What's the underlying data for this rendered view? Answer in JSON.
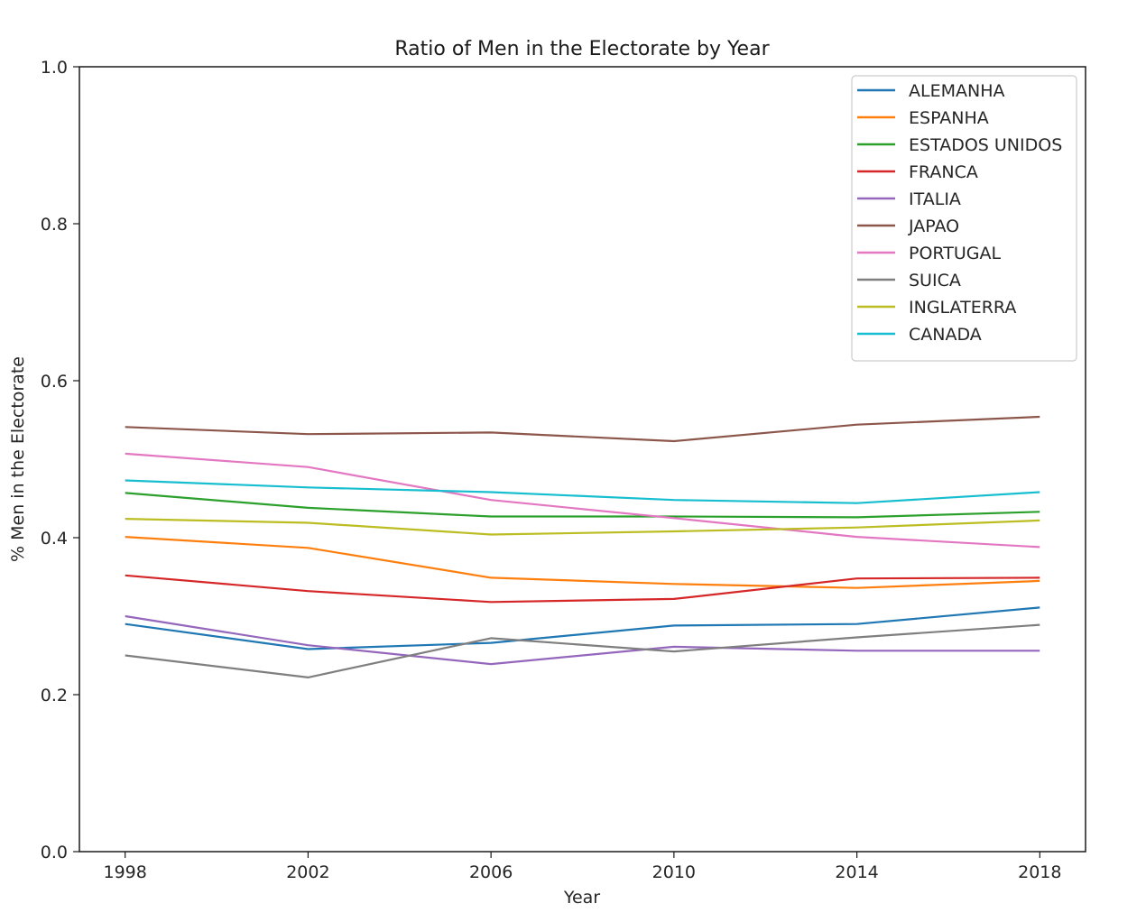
{
  "chart_data": {
    "type": "line",
    "title": "Ratio of Men in the Electorate by Year",
    "xlabel": "Year",
    "ylabel": "% Men in the Electorate",
    "x": [
      1998,
      2002,
      2006,
      2010,
      2014,
      2018
    ],
    "xticks": [
      "1998",
      "2002",
      "2006",
      "2010",
      "2014",
      "2018"
    ],
    "xlim": [
      1997,
      2019
    ],
    "ylim": [
      0.0,
      1.0
    ],
    "yticks": [
      "0.0",
      "0.2",
      "0.4",
      "0.6",
      "0.8",
      "1.0"
    ],
    "grid": false,
    "legend_position": "top-right",
    "series": [
      {
        "name": "ALEMANHA",
        "color": "#1f77b4",
        "values": [
          0.29,
          0.258,
          0.266,
          0.288,
          0.29,
          0.311
        ]
      },
      {
        "name": "ESPANHA",
        "color": "#ff7f0e",
        "values": [
          0.401,
          0.387,
          0.349,
          0.341,
          0.336,
          0.345
        ]
      },
      {
        "name": "ESTADOS UNIDOS",
        "color": "#2ca02c",
        "values": [
          0.457,
          0.438,
          0.427,
          0.427,
          0.426,
          0.433
        ]
      },
      {
        "name": "FRANCA",
        "color": "#d62728",
        "values": [
          0.352,
          0.332,
          0.318,
          0.322,
          0.348,
          0.349
        ]
      },
      {
        "name": "ITALIA",
        "color": "#9467bd",
        "values": [
          0.3,
          0.263,
          0.239,
          0.261,
          0.256,
          0.256
        ]
      },
      {
        "name": "JAPAO",
        "color": "#8c564b",
        "values": [
          0.541,
          0.532,
          0.534,
          0.523,
          0.544,
          0.554
        ]
      },
      {
        "name": "PORTUGAL",
        "color": "#e377c2",
        "values": [
          0.507,
          0.49,
          0.448,
          0.425,
          0.401,
          0.388
        ]
      },
      {
        "name": "SUICA",
        "color": "#7f7f7f",
        "values": [
          0.25,
          0.222,
          0.272,
          0.255,
          0.273,
          0.289
        ]
      },
      {
        "name": "INGLATERRA",
        "color": "#bcbd22",
        "values": [
          0.424,
          0.419,
          0.404,
          0.408,
          0.413,
          0.422
        ]
      },
      {
        "name": "CANADA",
        "color": "#17becf",
        "values": [
          0.473,
          0.464,
          0.458,
          0.448,
          0.444,
          0.458
        ]
      }
    ]
  }
}
